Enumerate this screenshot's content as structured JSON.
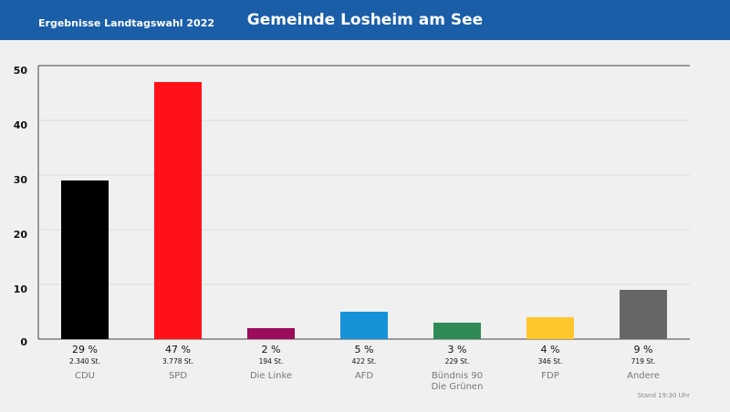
{
  "header": {
    "subtitle": "Ergebnisse Landtagswahl 2022",
    "title": "Gemeinde Losheim am See"
  },
  "chart_data": {
    "type": "bar",
    "categories": [
      "CDU",
      "SPD",
      "Die Linke",
      "AFD",
      "Bündnis 90\nDie Grünen",
      "FDP",
      "Andere"
    ],
    "values": [
      29,
      47,
      2,
      5,
      3,
      4,
      9
    ],
    "value_labels": [
      "29 %",
      "47 %",
      "2 %",
      "5 %",
      "3 %",
      "4 %",
      "9 %"
    ],
    "votes": [
      "2.340 St.",
      "3.778 St.",
      "194 St.",
      "422 St.",
      "229 St.",
      "346 St.",
      "719 St."
    ],
    "colors": [
      "#000000",
      "#ff1118",
      "#9b0c5b",
      "#1592d8",
      "#2e8b57",
      "#ffc72c",
      "#666666"
    ],
    "ylim": [
      0,
      50
    ],
    "yticks": [
      0,
      10,
      20,
      30,
      40,
      50
    ],
    "grid": true
  },
  "footer": "Stand 19:30 Uhr"
}
